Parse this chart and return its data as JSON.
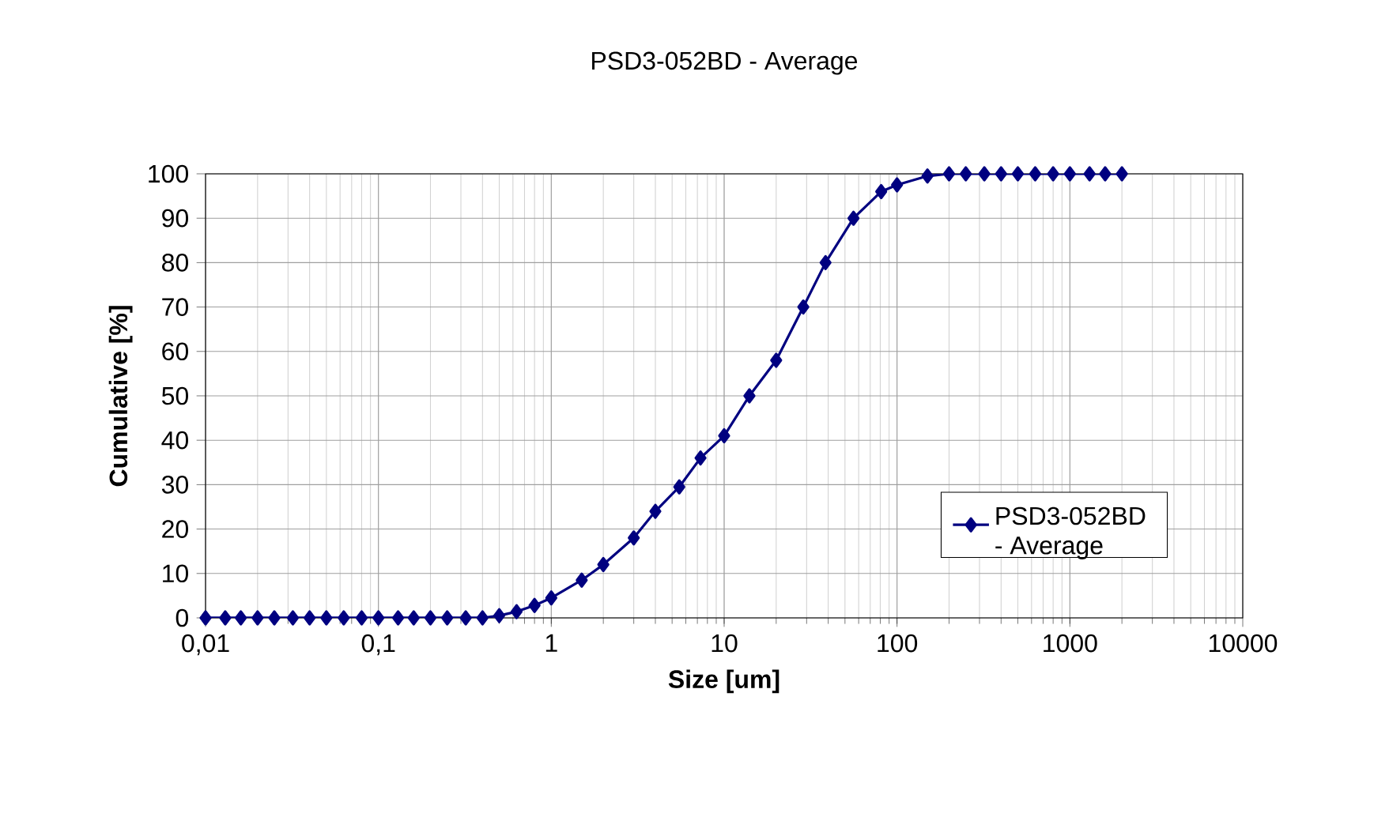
{
  "chart_data": {
    "type": "line",
    "title": "PSD3-052BD - Average",
    "xlabel": "Size [um]",
    "ylabel": "Cumulative [%]",
    "x": [
      0.01,
      0.013,
      0.016,
      0.02,
      0.025,
      0.032,
      0.04,
      0.05,
      0.063,
      0.08,
      0.1,
      0.13,
      0.16,
      0.2,
      0.25,
      0.32,
      0.4,
      0.5,
      0.63,
      0.8,
      1,
      1.5,
      2,
      3,
      4,
      5.5,
      7.3,
      10,
      14,
      20,
      28.7,
      38.6,
      56,
      81,
      100,
      150,
      200,
      250,
      320,
      400,
      500,
      630,
      800,
      1000,
      1300,
      1600,
      2000
    ],
    "series": [
      {
        "name": "PSD3-052BD - Average",
        "color": "#000080",
        "values": [
          0,
          0,
          0,
          0,
          0,
          0,
          0,
          0,
          0,
          0,
          0,
          0,
          0,
          0,
          0,
          0,
          0,
          0.5,
          1.4,
          2.8,
          4.5,
          8.5,
          12,
          18,
          24,
          29.5,
          36,
          41,
          50,
          58,
          70,
          80,
          90,
          96,
          97.5,
          99.5,
          100,
          100,
          100,
          100,
          100,
          100,
          100,
          100,
          100,
          100,
          100
        ]
      }
    ],
    "log": "x",
    "xlim": [
      0.01,
      10000
    ],
    "xticks": [
      {
        "value": 0.01,
        "label": "0,01"
      },
      {
        "value": 0.1,
        "label": "0,1"
      },
      1,
      10,
      100,
      1000,
      10000
    ],
    "ylim": [
      0,
      100
    ],
    "yticks": [
      0,
      10,
      20,
      30,
      40,
      50,
      60,
      70,
      80,
      90,
      100
    ],
    "grid": true,
    "legend": "right",
    "marker": "diamond",
    "line_style": "solid"
  }
}
